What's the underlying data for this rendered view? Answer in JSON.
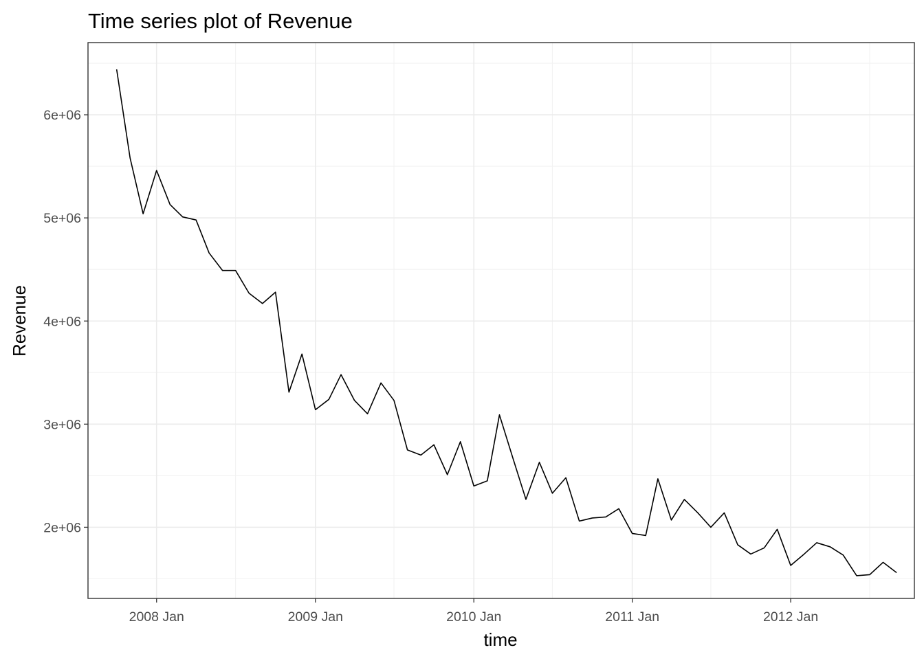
{
  "chart_data": {
    "type": "line",
    "title": "Time series plot of Revenue",
    "xlabel": "time",
    "ylabel": "Revenue",
    "x_tick_labels": [
      {
        "date": "2008-01",
        "label": "2008 Jan"
      },
      {
        "date": "2009-01",
        "label": "2009 Jan"
      },
      {
        "date": "2010-01",
        "label": "2010 Jan"
      },
      {
        "date": "2011-01",
        "label": "2011 Jan"
      },
      {
        "date": "2012-01",
        "label": "2012 Jan"
      }
    ],
    "y_ticks": [
      2000000,
      3000000,
      4000000,
      5000000,
      6000000
    ],
    "y_tick_labels": [
      "2e+06",
      "3e+06",
      "4e+06",
      "5e+06",
      "6e+06"
    ],
    "xlim": [
      "2007-07-27",
      "2012-10-12"
    ],
    "ylim": [
      1310000,
      6700000
    ],
    "grid": true,
    "series": [
      {
        "color": "#000000",
        "points": [
          [
            "2007-10",
            6440000
          ],
          [
            "2007-11",
            5580000
          ],
          [
            "2007-12",
            5040000
          ],
          [
            "2008-01",
            5460000
          ],
          [
            "2008-02",
            5130000
          ],
          [
            "2008-03",
            5010000
          ],
          [
            "2008-04",
            4980000
          ],
          [
            "2008-05",
            4660000
          ],
          [
            "2008-06",
            4490000
          ],
          [
            "2008-07",
            4490000
          ],
          [
            "2008-08",
            4270000
          ],
          [
            "2008-09",
            4170000
          ],
          [
            "2008-10",
            4280000
          ],
          [
            "2008-11",
            3310000
          ],
          [
            "2008-12",
            3680000
          ],
          [
            "2009-01",
            3140000
          ],
          [
            "2009-02",
            3240000
          ],
          [
            "2009-03",
            3480000
          ],
          [
            "2009-04",
            3230000
          ],
          [
            "2009-05",
            3100000
          ],
          [
            "2009-06",
            3400000
          ],
          [
            "2009-07",
            3230000
          ],
          [
            "2009-08",
            2750000
          ],
          [
            "2009-09",
            2700000
          ],
          [
            "2009-10",
            2800000
          ],
          [
            "2009-11",
            2510000
          ],
          [
            "2009-12",
            2830000
          ],
          [
            "2010-01",
            2400000
          ],
          [
            "2010-02",
            2450000
          ],
          [
            "2010-03",
            3090000
          ],
          [
            "2010-04",
            2670000
          ],
          [
            "2010-05",
            2270000
          ],
          [
            "2010-06",
            2630000
          ],
          [
            "2010-07",
            2330000
          ],
          [
            "2010-08",
            2480000
          ],
          [
            "2010-09",
            2060000
          ],
          [
            "2010-10",
            2090000
          ],
          [
            "2010-11",
            2100000
          ],
          [
            "2010-12",
            2180000
          ],
          [
            "2011-01",
            1940000
          ],
          [
            "2011-02",
            1920000
          ],
          [
            "2011-03",
            2470000
          ],
          [
            "2011-04",
            2070000
          ],
          [
            "2011-05",
            2270000
          ],
          [
            "2011-06",
            2140000
          ],
          [
            "2011-07",
            2000000
          ],
          [
            "2011-08",
            2140000
          ],
          [
            "2011-09",
            1830000
          ],
          [
            "2011-10",
            1740000
          ],
          [
            "2011-11",
            1800000
          ],
          [
            "2011-12",
            1980000
          ],
          [
            "2012-01",
            1630000
          ],
          [
            "2012-02",
            1740000
          ],
          [
            "2012-03",
            1850000
          ],
          [
            "2012-04",
            1810000
          ],
          [
            "2012-05",
            1730000
          ],
          [
            "2012-06",
            1530000
          ],
          [
            "2012-07",
            1540000
          ],
          [
            "2012-08",
            1660000
          ],
          [
            "2012-09",
            1560000
          ]
        ]
      }
    ]
  }
}
